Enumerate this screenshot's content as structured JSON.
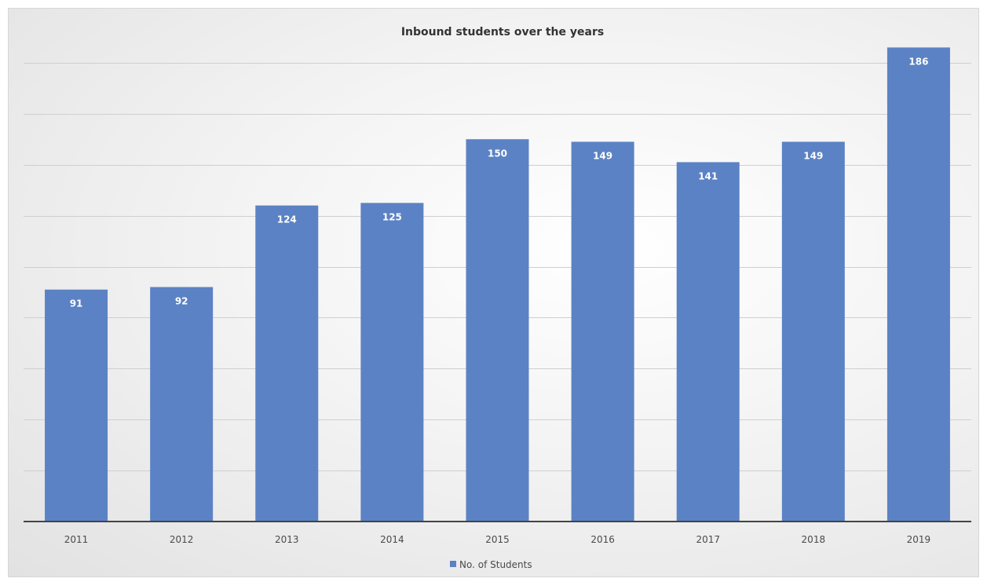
{
  "chart_data": {
    "type": "bar",
    "title": "Inbound students over the years",
    "xlabel": "",
    "ylabel": "",
    "categories": [
      "2011",
      "2012",
      "2013",
      "2014",
      "2015",
      "2016",
      "2017",
      "2018",
      "2019"
    ],
    "series": [
      {
        "name": "No. of Students",
        "values": [
          91,
          92,
          124,
          125,
          150,
          149,
          141,
          149,
          186
        ],
        "color": "#5b82c4"
      }
    ],
    "ylim": [
      0,
      200
    ],
    "y_gridline_step": 20,
    "y_tick_labels_shown": false,
    "grid": true,
    "legend_position": "bottom",
    "data_labels_position": "inside-end"
  }
}
